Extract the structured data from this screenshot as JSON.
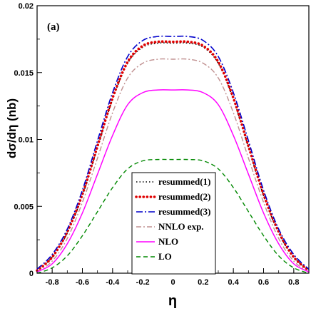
{
  "chart_data": {
    "type": "line",
    "panel_label": "(a)",
    "xlabel": "η",
    "ylabel": "dσ/dη (nb)",
    "xlim": [
      -0.9,
      0.9
    ],
    "ylim": [
      0,
      0.02
    ],
    "x_ticks": [
      -0.8,
      -0.6,
      -0.4,
      -0.2,
      0,
      0.2,
      0.4,
      0.6,
      0.8
    ],
    "x_tick_labels": [
      "-0.8",
      "-0.6",
      "-0.4",
      "-0.2",
      "0",
      "0.2",
      "0.4",
      "0.6",
      "0.8"
    ],
    "y_ticks": [
      0,
      0.005,
      0.01,
      0.015,
      0.02
    ],
    "y_tick_labels": [
      "0",
      "0.005",
      "0.01",
      "0.015",
      "0.02"
    ],
    "grid": false,
    "legend_position": "bottom-center",
    "x": [
      -0.9,
      -0.8,
      -0.7,
      -0.6,
      -0.5,
      -0.4,
      -0.3,
      -0.2,
      -0.1,
      0,
      0.1,
      0.2,
      0.3,
      0.4,
      0.5,
      0.6,
      0.7,
      0.8,
      0.9
    ],
    "series": [
      {
        "name": "resummed(1)",
        "color": "#000000",
        "style": "dotted",
        "values": [
          0.0002,
          0.0012,
          0.003,
          0.0058,
          0.0094,
          0.013,
          0.0157,
          0.0169,
          0.0172,
          0.0172,
          0.0172,
          0.0169,
          0.0157,
          0.013,
          0.0094,
          0.0058,
          0.003,
          0.0012,
          0.0002
        ]
      },
      {
        "name": "resummed(2)",
        "color": "#e00000",
        "style": "bigdots",
        "values": [
          0.0002,
          0.0012,
          0.0031,
          0.0059,
          0.0095,
          0.0131,
          0.0158,
          0.017,
          0.0173,
          0.0173,
          0.0173,
          0.017,
          0.0158,
          0.0131,
          0.0095,
          0.0059,
          0.0031,
          0.0012,
          0.0002
        ]
      },
      {
        "name": "resummed(3)",
        "color": "#0000cc",
        "style": "dashdot",
        "values": [
          0.0003,
          0.0014,
          0.0033,
          0.0062,
          0.0099,
          0.0135,
          0.0162,
          0.0174,
          0.0177,
          0.0177,
          0.0177,
          0.0174,
          0.0162,
          0.0135,
          0.0099,
          0.0062,
          0.0033,
          0.0014,
          0.0003
        ]
      },
      {
        "name": "NNLO exp.",
        "color": "#c09090",
        "style": "dashdot2",
        "values": [
          0.0001,
          0.0009,
          0.0026,
          0.0053,
          0.0086,
          0.012,
          0.0146,
          0.0157,
          0.016,
          0.016,
          0.016,
          0.0157,
          0.0146,
          0.012,
          0.0086,
          0.0053,
          0.0026,
          0.0009,
          0.0001
        ]
      },
      {
        "name": "NLO",
        "color": "#ff00ff",
        "style": "solid",
        "values": [
          0.0001,
          0.0007,
          0.0022,
          0.0045,
          0.0074,
          0.0103,
          0.0126,
          0.0135,
          0.0137,
          0.0137,
          0.0137,
          0.0135,
          0.0126,
          0.0103,
          0.0074,
          0.0045,
          0.0022,
          0.0007,
          0.0001
        ]
      },
      {
        "name": "LO",
        "color": "#008800",
        "style": "dashed",
        "values": [
          0.0,
          0.0004,
          0.0013,
          0.0028,
          0.0046,
          0.0064,
          0.0078,
          0.0084,
          0.0085,
          0.0085,
          0.0085,
          0.0084,
          0.0078,
          0.0064,
          0.0046,
          0.0028,
          0.0013,
          0.0004,
          0.0
        ]
      }
    ]
  }
}
